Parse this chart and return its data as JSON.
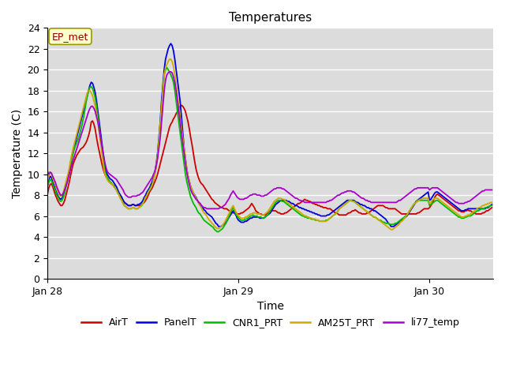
{
  "title": "Temperatures",
  "ylabel": "Temperature (C)",
  "xlabel": "Time",
  "annotation": "EP_met",
  "ylim": [
    0,
    24
  ],
  "yticks": [
    0,
    2,
    4,
    6,
    8,
    10,
    12,
    14,
    16,
    18,
    20,
    22,
    24
  ],
  "xtick_labels": [
    "Jan 28",
    "Jan 29",
    "Jan 30"
  ],
  "xtick_positions": [
    0,
    144,
    288
  ],
  "xlim": [
    0,
    336
  ],
  "background_color": "#dcdcdc",
  "title_fontsize": 11,
  "axis_fontsize": 10,
  "legend_fontsize": 9,
  "linewidth": 1.3,
  "colors": {
    "AirT": "#cc0000",
    "PanelT": "#0000dd",
    "CNR1_PRT": "#00bb00",
    "AM25T_PRT": "#ccaa00",
    "li77_temp": "#aa00cc"
  }
}
